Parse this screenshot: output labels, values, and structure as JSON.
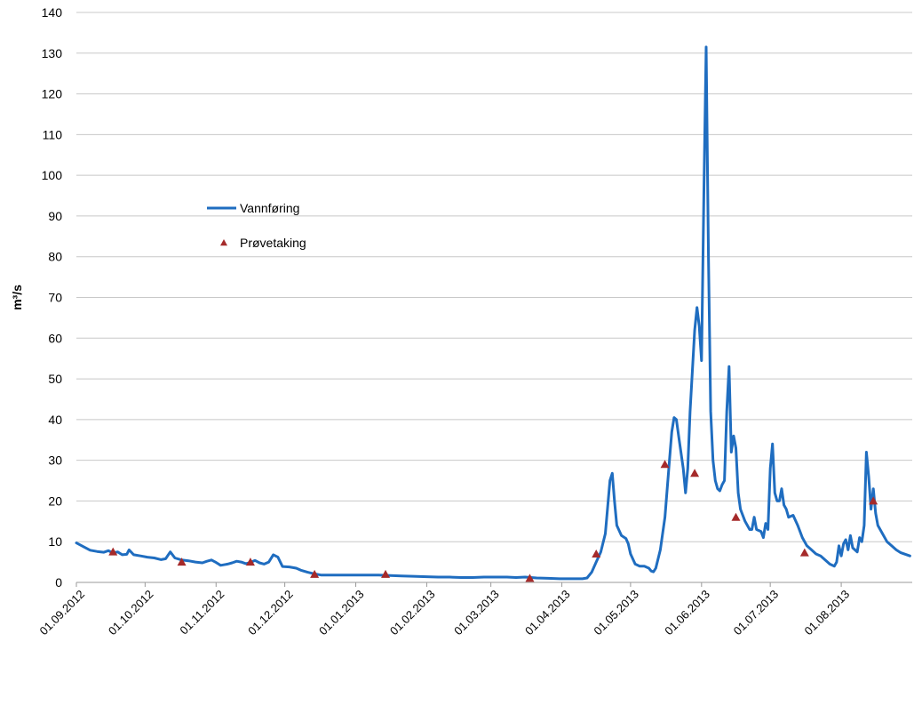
{
  "chart_data": {
    "type": "line",
    "title": "",
    "xlabel": "",
    "ylabel": "m³/s",
    "ylim": [
      0,
      140
    ],
    "yticks": [
      0,
      10,
      20,
      30,
      40,
      50,
      60,
      70,
      80,
      90,
      100,
      110,
      120,
      130,
      140
    ],
    "xlim": [
      "2012-09-01",
      "2013-08-31"
    ],
    "xticks": [
      {
        "date": "2012-09-01",
        "label": "01.09.2012"
      },
      {
        "date": "2012-10-01",
        "label": "01.10.2012"
      },
      {
        "date": "2012-11-01",
        "label": "01.11.2012"
      },
      {
        "date": "2012-12-01",
        "label": "01.12.2012"
      },
      {
        "date": "2013-01-01",
        "label": "01.01.2013"
      },
      {
        "date": "2013-02-01",
        "label": "01.02.2013"
      },
      {
        "date": "2013-03-01",
        "label": "01.03.2013"
      },
      {
        "date": "2013-04-01",
        "label": "01.04.2013"
      },
      {
        "date": "2013-05-01",
        "label": "01.05.2013"
      },
      {
        "date": "2013-06-01",
        "label": "01.06.2013"
      },
      {
        "date": "2013-07-01",
        "label": "01.07.2013"
      },
      {
        "date": "2013-08-01",
        "label": "01.08.2013"
      }
    ],
    "grid": "horizontal",
    "legend_position": "upper-left-inside",
    "colors": {
      "line": "#1F6DC0",
      "marker": "#A52A2A",
      "grid": "#C8C8C8"
    },
    "series": [
      {
        "name": "Vannføring",
        "kind": "line",
        "points": [
          [
            "2012-09-01",
            9.7
          ],
          [
            "2012-09-04",
            8.8
          ],
          [
            "2012-09-07",
            7.9
          ],
          [
            "2012-09-10",
            7.6
          ],
          [
            "2012-09-13",
            7.4
          ],
          [
            "2012-09-15",
            7.8
          ],
          [
            "2012-09-17",
            7.2
          ],
          [
            "2012-09-19",
            7.5
          ],
          [
            "2012-09-21",
            6.8
          ],
          [
            "2012-09-23",
            6.9
          ],
          [
            "2012-09-24",
            8.0
          ],
          [
            "2012-09-26",
            6.8
          ],
          [
            "2012-09-29",
            6.5
          ],
          [
            "2012-10-02",
            6.2
          ],
          [
            "2012-10-05",
            6.0
          ],
          [
            "2012-10-08",
            5.6
          ],
          [
            "2012-10-10",
            5.8
          ],
          [
            "2012-10-12",
            7.5
          ],
          [
            "2012-10-14",
            6.0
          ],
          [
            "2012-10-17",
            5.5
          ],
          [
            "2012-10-20",
            5.3
          ],
          [
            "2012-10-23",
            5.0
          ],
          [
            "2012-10-26",
            4.8
          ],
          [
            "2012-10-28",
            5.2
          ],
          [
            "2012-10-30",
            5.5
          ],
          [
            "2012-11-01",
            4.9
          ],
          [
            "2012-11-03",
            4.2
          ],
          [
            "2012-11-06",
            4.5
          ],
          [
            "2012-11-08",
            4.8
          ],
          [
            "2012-11-10",
            5.2
          ],
          [
            "2012-11-12",
            5.0
          ],
          [
            "2012-11-14",
            4.6
          ],
          [
            "2012-11-16",
            4.9
          ],
          [
            "2012-11-18",
            5.4
          ],
          [
            "2012-11-20",
            4.8
          ],
          [
            "2012-11-22",
            4.5
          ],
          [
            "2012-11-24",
            5.0
          ],
          [
            "2012-11-26",
            6.8
          ],
          [
            "2012-11-28",
            6.2
          ],
          [
            "2012-11-30",
            3.9
          ],
          [
            "2012-12-03",
            3.8
          ],
          [
            "2012-12-06",
            3.5
          ],
          [
            "2012-12-08",
            3.0
          ],
          [
            "2012-12-11",
            2.5
          ],
          [
            "2012-12-14",
            2.1
          ],
          [
            "2012-12-17",
            1.8
          ],
          [
            "2012-12-22",
            1.8
          ],
          [
            "2012-12-27",
            1.8
          ],
          [
            "2013-01-01",
            1.8
          ],
          [
            "2013-01-06",
            1.8
          ],
          [
            "2013-01-11",
            1.8
          ],
          [
            "2013-01-16",
            1.7
          ],
          [
            "2013-01-21",
            1.6
          ],
          [
            "2013-01-26",
            1.5
          ],
          [
            "2013-02-01",
            1.4
          ],
          [
            "2013-02-06",
            1.3
          ],
          [
            "2013-02-11",
            1.3
          ],
          [
            "2013-02-16",
            1.2
          ],
          [
            "2013-02-21",
            1.2
          ],
          [
            "2013-02-26",
            1.3
          ],
          [
            "2013-03-03",
            1.3
          ],
          [
            "2013-03-08",
            1.3
          ],
          [
            "2013-03-12",
            1.2
          ],
          [
            "2013-03-16",
            1.3
          ],
          [
            "2013-03-21",
            1.1
          ],
          [
            "2013-03-26",
            1.0
          ],
          [
            "2013-03-31",
            0.9
          ],
          [
            "2013-04-05",
            0.9
          ],
          [
            "2013-04-10",
            0.9
          ],
          [
            "2013-04-12",
            1.1
          ],
          [
            "2013-04-14",
            2.5
          ],
          [
            "2013-04-16",
            5.0
          ],
          [
            "2013-04-18",
            7.5
          ],
          [
            "2013-04-20",
            12
          ],
          [
            "2013-04-22",
            25
          ],
          [
            "2013-04-23",
            26.8
          ],
          [
            "2013-04-24",
            20
          ],
          [
            "2013-04-25",
            14
          ],
          [
            "2013-04-27",
            11.5
          ],
          [
            "2013-04-29",
            10.8
          ],
          [
            "2013-04-30",
            9.5
          ],
          [
            "2013-05-01",
            7.0
          ],
          [
            "2013-05-03",
            4.5
          ],
          [
            "2013-05-05",
            4.0
          ],
          [
            "2013-05-07",
            4.0
          ],
          [
            "2013-05-09",
            3.5
          ],
          [
            "2013-05-10",
            2.8
          ],
          [
            "2013-05-11",
            2.6
          ],
          [
            "2013-05-12",
            3.5
          ],
          [
            "2013-05-14",
            8
          ],
          [
            "2013-05-16",
            16
          ],
          [
            "2013-05-18",
            30
          ],
          [
            "2013-05-19",
            37
          ],
          [
            "2013-05-20",
            40.5
          ],
          [
            "2013-05-21",
            40
          ],
          [
            "2013-05-22",
            36
          ],
          [
            "2013-05-24",
            28
          ],
          [
            "2013-05-25",
            22
          ],
          [
            "2013-05-26",
            28
          ],
          [
            "2013-05-27",
            42
          ],
          [
            "2013-05-28",
            52
          ],
          [
            "2013-05-29",
            62
          ],
          [
            "2013-05-30",
            67.5
          ],
          [
            "2013-05-31",
            63
          ],
          [
            "2013-06-01",
            54.5
          ],
          [
            "2013-06-02",
            95
          ],
          [
            "2013-06-03",
            131.5
          ],
          [
            "2013-06-04",
            80
          ],
          [
            "2013-06-05",
            42
          ],
          [
            "2013-06-06",
            30
          ],
          [
            "2013-06-07",
            25
          ],
          [
            "2013-06-08",
            23
          ],
          [
            "2013-06-09",
            22.5
          ],
          [
            "2013-06-10",
            24
          ],
          [
            "2013-06-11",
            25
          ],
          [
            "2013-06-12",
            42
          ],
          [
            "2013-06-13",
            53
          ],
          [
            "2013-06-14",
            32
          ],
          [
            "2013-06-15",
            36
          ],
          [
            "2013-06-16",
            33
          ],
          [
            "2013-06-17",
            22
          ],
          [
            "2013-06-18",
            18
          ],
          [
            "2013-06-20",
            15
          ],
          [
            "2013-06-22",
            13
          ],
          [
            "2013-06-23",
            13
          ],
          [
            "2013-06-24",
            16
          ],
          [
            "2013-06-25",
            13
          ],
          [
            "2013-06-27",
            12.5
          ],
          [
            "2013-06-28",
            11
          ],
          [
            "2013-06-29",
            14.5
          ],
          [
            "2013-06-30",
            13
          ],
          [
            "2013-07-01",
            28
          ],
          [
            "2013-07-02",
            34
          ],
          [
            "2013-07-03",
            22
          ],
          [
            "2013-07-04",
            20
          ],
          [
            "2013-07-05",
            20
          ],
          [
            "2013-07-06",
            23
          ],
          [
            "2013-07-07",
            19
          ],
          [
            "2013-07-08",
            18
          ],
          [
            "2013-07-09",
            16
          ],
          [
            "2013-07-11",
            16.5
          ],
          [
            "2013-07-13",
            14
          ],
          [
            "2013-07-15",
            11
          ],
          [
            "2013-07-17",
            9
          ],
          [
            "2013-07-19",
            8
          ],
          [
            "2013-07-21",
            7.0
          ],
          [
            "2013-07-23",
            6.5
          ],
          [
            "2013-07-25",
            5.5
          ],
          [
            "2013-07-27",
            4.5
          ],
          [
            "2013-07-29",
            4.0
          ],
          [
            "2013-07-30",
            5.0
          ],
          [
            "2013-07-31",
            9.0
          ],
          [
            "2013-08-01",
            6.5
          ],
          [
            "2013-08-02",
            9.5
          ],
          [
            "2013-08-03",
            10.5
          ],
          [
            "2013-08-04",
            8
          ],
          [
            "2013-08-05",
            11.5
          ],
          [
            "2013-08-06",
            8.5
          ],
          [
            "2013-08-08",
            7.5
          ],
          [
            "2013-08-09",
            11
          ],
          [
            "2013-08-10",
            10
          ],
          [
            "2013-08-11",
            14
          ],
          [
            "2013-08-12",
            32
          ],
          [
            "2013-08-13",
            26
          ],
          [
            "2013-08-14",
            18
          ],
          [
            "2013-08-15",
            23
          ],
          [
            "2013-08-16",
            17
          ],
          [
            "2013-08-17",
            14
          ],
          [
            "2013-08-19",
            12
          ],
          [
            "2013-08-21",
            10
          ],
          [
            "2013-08-23",
            9
          ],
          [
            "2013-08-25",
            8
          ],
          [
            "2013-08-27",
            7.3
          ],
          [
            "2013-08-31",
            6.5
          ]
        ]
      },
      {
        "name": "Prøvetaking",
        "kind": "marker",
        "points": [
          [
            "2012-09-17",
            7.5
          ],
          [
            "2012-10-17",
            5.0
          ],
          [
            "2012-11-16",
            5.0
          ],
          [
            "2012-12-14",
            2.0
          ],
          [
            "2013-01-14",
            2.0
          ],
          [
            "2013-03-18",
            1.0
          ],
          [
            "2013-04-16",
            7.0
          ],
          [
            "2013-05-16",
            29
          ],
          [
            "2013-05-29",
            26.8
          ],
          [
            "2013-06-16",
            16
          ],
          [
            "2013-07-16",
            7.3
          ],
          [
            "2013-08-15",
            20
          ]
        ]
      }
    ]
  }
}
